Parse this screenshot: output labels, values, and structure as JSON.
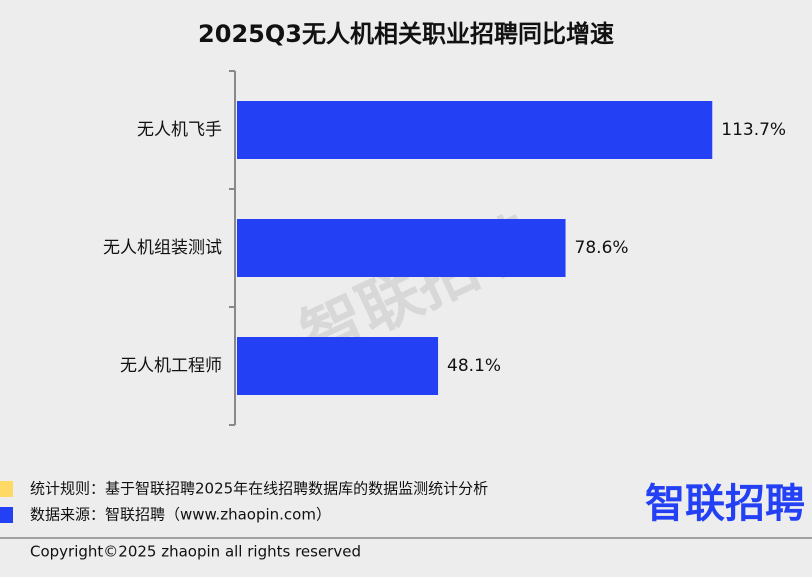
{
  "chart_data": {
    "type": "bar",
    "orientation": "horizontal",
    "title": "2025Q3无人机相关职业招聘同比增速",
    "categories": [
      "无人机飞手",
      "无人机组装测试",
      "无人机工程师"
    ],
    "values": [
      113.7,
      78.6,
      48.1
    ],
    "value_labels": [
      "113.7%",
      "78.6%",
      "48.1%"
    ],
    "color": "#2340f5"
  },
  "watermark": "智联招聘",
  "footer": {
    "rule": "统计规则：基于智联招聘2025年在线招聘数据库的数据监测统计分析",
    "source": "数据来源：智联招聘（www.zhaopin.com）",
    "logo": "智联招聘",
    "copyright": "Copyright©2025 zhaopin all rights reserved"
  }
}
